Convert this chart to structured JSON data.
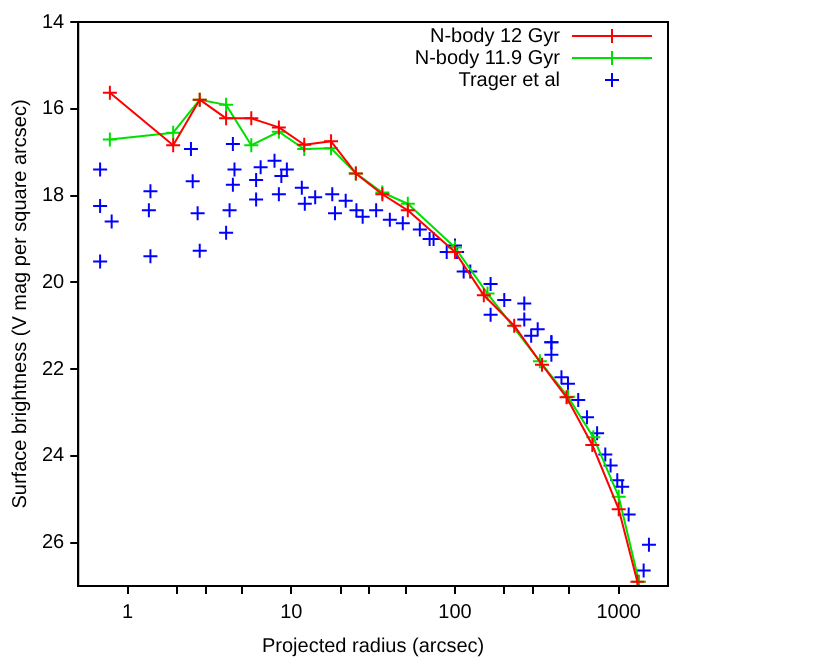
{
  "chart_data": {
    "type": "line",
    "xlabel": "Projected radius (arcsec)",
    "ylabel": "Surface brightness (V mag per square arcsec)",
    "log": "x",
    "grid": false,
    "legend": "top right",
    "xlim": [
      0.5,
      2000
    ],
    "ylim": [
      27,
      14
    ],
    "xticks": [
      1,
      {
        "value": 2,
        "label": null
      },
      {
        "value": 3,
        "label": null
      },
      {
        "value": 5,
        "label": null
      },
      10,
      {
        "value": 20,
        "label": null
      },
      {
        "value": 30,
        "label": null
      },
      {
        "value": 50,
        "label": null
      },
      100,
      {
        "value": 200,
        "label": null
      },
      {
        "value": 300,
        "label": null
      },
      {
        "value": 500,
        "label": null
      },
      1000
    ],
    "yticks": [
      14,
      16,
      18,
      20,
      22,
      24,
      26
    ],
    "series": [
      {
        "name": "N-body 12 Gyr",
        "color": "#ff0000",
        "marker": "cross",
        "x": [
          0.78,
          1.9,
          2.76,
          4.0,
          5.7,
          8.4,
          12,
          17.5,
          24.8,
          36,
          51.5,
          100,
          150,
          230,
          340,
          480,
          690,
          1000,
          1300
        ],
        "values": [
          15.63,
          16.84,
          15.79,
          16.22,
          16.22,
          16.43,
          16.83,
          16.75,
          17.49,
          17.97,
          18.34,
          19.3,
          20.3,
          21.0,
          21.9,
          22.65,
          23.75,
          25.23,
          26.9
        ]
      },
      {
        "name": "N-body 11.9 Gyr",
        "color": "#00e000",
        "marker": "cross",
        "x": [
          0.78,
          1.9,
          2.76,
          4.0,
          5.7,
          8.4,
          12,
          17.5,
          24.8,
          36,
          51.5,
          100,
          158,
          330,
          490,
          700,
          1000,
          1330
        ],
        "values": [
          16.71,
          16.55,
          15.79,
          15.91,
          16.84,
          16.53,
          16.93,
          16.91,
          17.49,
          17.93,
          18.19,
          19.2,
          20.26,
          21.82,
          22.64,
          23.57,
          24.94,
          26.9
        ]
      },
      {
        "name": "Trager et al",
        "type": "scatter",
        "color": "#0000ff",
        "marker": "cross",
        "x": [
          0.68,
          0.68,
          0.68,
          0.8,
          1.38,
          1.35,
          1.38,
          2.44,
          2.5,
          2.68,
          2.76,
          4.4,
          4.5,
          4.4,
          4.2,
          4.0,
          6.1,
          6.1,
          6.5,
          7.9,
          9.4,
          8.4,
          8.7,
          11.6,
          12.1,
          14,
          17.8,
          18.5,
          21.5,
          25,
          27.3,
          33,
          40,
          48,
          61,
          74,
          89,
          100,
          124,
          70,
          103,
          113,
          165,
          265,
          320,
          388,
          165,
          200,
          265,
          292,
          388,
          388,
          447,
          490,
          566,
          640,
          738,
          828,
          892,
          980,
          1050,
          1150,
          1530,
          1420
        ],
        "values": [
          17.4,
          18.24,
          19.52,
          18.6,
          17.9,
          18.34,
          19.4,
          16.93,
          17.67,
          18.41,
          19.27,
          16.81,
          17.4,
          17.75,
          18.34,
          18.86,
          17.64,
          18.09,
          17.35,
          17.2,
          17.4,
          17.97,
          17.55,
          17.82,
          18.19,
          18.04,
          17.97,
          18.41,
          18.12,
          18.34,
          18.49,
          18.34,
          18.56,
          18.64,
          18.78,
          19.0,
          19.3,
          19.15,
          19.75,
          19.0,
          19.3,
          19.75,
          20.04,
          20.49,
          21.08,
          21.38,
          20.75,
          20.41,
          20.86,
          21.23,
          21.38,
          21.67,
          22.19,
          22.34,
          22.71,
          23.11,
          23.48,
          23.97,
          24.22,
          24.56,
          24.71,
          25.35,
          26.05,
          26.64
        ]
      }
    ]
  }
}
